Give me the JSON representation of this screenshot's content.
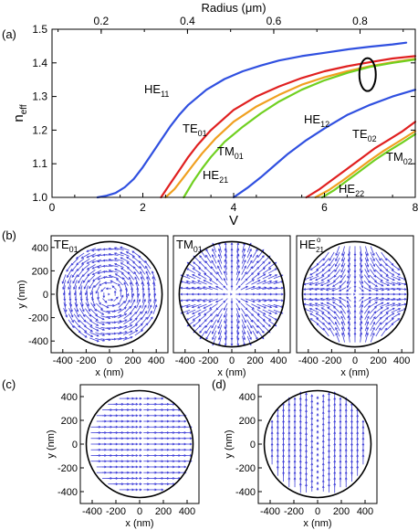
{
  "panel_labels": {
    "a": "(a)",
    "b": "(b)",
    "c": "(c)",
    "d": "(d)"
  },
  "colors": {
    "blue": "#3050e0",
    "red": "#e02020",
    "orange": "#f0a020",
    "green": "#70d020",
    "arrow": "#4040d8"
  },
  "chart_data": [
    {
      "type": "line",
      "panel": "(a)",
      "xlabel": "V",
      "ylabel": "n_eff",
      "top_xlabel": "Radius (μm)",
      "xlim": [
        0,
        8
      ],
      "ylim": [
        1.0,
        1.5
      ],
      "top_xlim": [
        0.086,
        0.928
      ],
      "xticks": [
        "0",
        "2",
        "4",
        "6",
        "8"
      ],
      "yticks": [
        "1.0",
        "1.1",
        "1.2",
        "1.3",
        "1.4",
        "1.5"
      ],
      "top_xticks": [
        "0.2",
        "0.4",
        "0.6",
        "0.8"
      ],
      "series": [
        {
          "name": "HE11",
          "label": "HE",
          "sub": "11",
          "color": "blue",
          "x": [
            1.0,
            1.2,
            1.4,
            1.6,
            1.8,
            2.0,
            2.2,
            2.4,
            2.6,
            2.8,
            3.0,
            3.4,
            3.8,
            4.2,
            4.6,
            5.0,
            5.5,
            6.0,
            6.5,
            7.0,
            7.5,
            7.8
          ],
          "y": [
            1.0,
            1.005,
            1.013,
            1.03,
            1.055,
            1.09,
            1.13,
            1.17,
            1.21,
            1.245,
            1.275,
            1.32,
            1.352,
            1.375,
            1.392,
            1.407,
            1.42,
            1.43,
            1.44,
            1.448,
            1.455,
            1.46
          ]
        },
        {
          "name": "TE01",
          "label": "TE",
          "sub": "01",
          "color": "red",
          "x": [
            2.4,
            2.6,
            2.8,
            3.0,
            3.2,
            3.5,
            4.0,
            4.5,
            5.0,
            5.5,
            6.0,
            6.5,
            7.0,
            7.5,
            8.0
          ],
          "y": [
            1.0,
            1.04,
            1.08,
            1.12,
            1.155,
            1.2,
            1.26,
            1.3,
            1.33,
            1.355,
            1.375,
            1.39,
            1.402,
            1.413,
            1.42
          ]
        },
        {
          "name": "TM01",
          "label": "TM",
          "sub": "01",
          "color": "orange",
          "x": [
            2.5,
            2.7,
            2.9,
            3.1,
            3.3,
            3.6,
            4.0,
            4.5,
            5.0,
            5.5,
            6.0,
            6.5,
            7.0,
            7.5,
            8.0
          ],
          "y": [
            1.0,
            1.025,
            1.06,
            1.095,
            1.13,
            1.175,
            1.225,
            1.27,
            1.305,
            1.335,
            1.357,
            1.375,
            1.39,
            1.402,
            1.412
          ]
        },
        {
          "name": "HE21",
          "label": "HE",
          "sub": "21",
          "color": "green",
          "x": [
            2.9,
            3.1,
            3.3,
            3.5,
            3.8,
            4.2,
            4.6,
            5.0,
            5.5,
            6.0,
            6.5,
            7.0,
            7.5,
            8.0
          ],
          "y": [
            1.0,
            1.045,
            1.085,
            1.12,
            1.165,
            1.21,
            1.25,
            1.285,
            1.32,
            1.348,
            1.37,
            1.388,
            1.4,
            1.41
          ]
        },
        {
          "name": "HE12",
          "label": "HE",
          "sub": "12",
          "color": "blue",
          "x": [
            4.0,
            4.3,
            4.6,
            4.9,
            5.2,
            5.6,
            6.0,
            6.5,
            7.0,
            7.5,
            8.0
          ],
          "y": [
            1.0,
            1.028,
            1.06,
            1.095,
            1.13,
            1.17,
            1.205,
            1.245,
            1.275,
            1.3,
            1.32
          ]
        },
        {
          "name": "TE02",
          "label": "TE",
          "sub": "02",
          "color": "red",
          "x": [
            5.6,
            5.9,
            6.2,
            6.5,
            6.8,
            7.1,
            7.4,
            7.7,
            8.0
          ],
          "y": [
            1.0,
            1.025,
            1.055,
            1.085,
            1.115,
            1.145,
            1.17,
            1.195,
            1.225
          ]
        },
        {
          "name": "TM02",
          "label": "TM",
          "sub": "02",
          "color": "orange",
          "x": [
            5.8,
            6.1,
            6.4,
            6.7,
            7.0,
            7.3,
            7.6,
            8.0
          ],
          "y": [
            1.0,
            1.022,
            1.05,
            1.08,
            1.11,
            1.138,
            1.163,
            1.197
          ]
        },
        {
          "name": "HE22",
          "label": "HE",
          "sub": "22",
          "color": "green",
          "x": [
            5.95,
            6.2,
            6.5,
            6.8,
            7.1,
            7.4,
            7.7,
            8.0
          ],
          "y": [
            1.0,
            1.02,
            1.05,
            1.08,
            1.11,
            1.137,
            1.162,
            1.188
          ]
        }
      ],
      "annotations": [
        {
          "shape": "ellipse",
          "x": 6.95,
          "y": 1.365
        }
      ]
    },
    {
      "type": "quiver",
      "panel": "(b)",
      "title": "TE",
      "sub": "01",
      "field": "azimuthal",
      "xlabel": "x (nm)",
      "ylabel": "y (nm)",
      "xlim": [
        -500,
        500
      ],
      "ylim": [
        -500,
        500
      ],
      "xticks": [
        "-400",
        "-200",
        "0",
        "200",
        "400"
      ],
      "yticks": [
        "400",
        "200",
        "0",
        "-200",
        "-400"
      ]
    },
    {
      "type": "quiver",
      "panel": "(b)",
      "title": "TM",
      "sub": "01",
      "field": "radial",
      "xlabel": "x (nm)",
      "xlim": [
        -500,
        500
      ],
      "ylim": [
        -500,
        500
      ],
      "xticks": [
        "-400",
        "-200",
        "0",
        "200",
        "400"
      ]
    },
    {
      "type": "quiver",
      "panel": "(b)",
      "title": "HE",
      "sub": "21",
      "sup": "o",
      "field": "hyperbolic",
      "xlabel": "x (nm)",
      "xlim": [
        -500,
        500
      ],
      "ylim": [
        -500,
        500
      ],
      "xticks": [
        "-400",
        "-200",
        "0",
        "200",
        "400"
      ]
    },
    {
      "type": "quiver",
      "panel": "(c)",
      "field": "horizontal",
      "xlabel": "x (nm)",
      "ylabel": "y (nm)",
      "xlim": [
        -500,
        500
      ],
      "ylim": [
        -500,
        500
      ],
      "xticks": [
        "-400",
        "-200",
        "0",
        "200",
        "400"
      ],
      "yticks": [
        "400",
        "200",
        "0",
        "-200",
        "-400"
      ]
    },
    {
      "type": "quiver",
      "panel": "(d)",
      "field": "vertical",
      "xlabel": "x (nm)",
      "ylabel": "y (nm)",
      "xlim": [
        -500,
        500
      ],
      "ylim": [
        -500,
        500
      ],
      "xticks": [
        "-400",
        "-200",
        "0",
        "200",
        "400"
      ],
      "yticks": [
        "400",
        "200",
        "0",
        "-200",
        "-400"
      ]
    }
  ]
}
